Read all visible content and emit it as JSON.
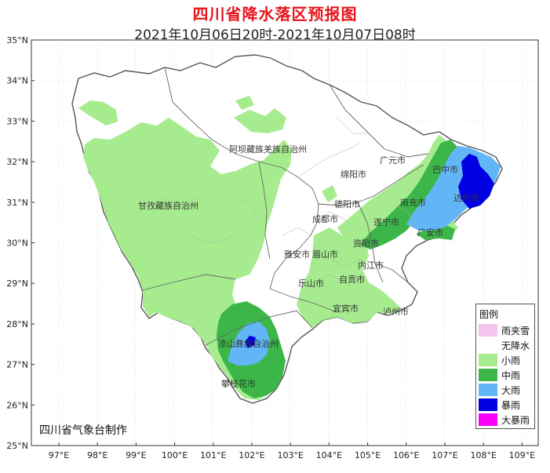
{
  "header": {
    "title": "四川省降水落区预报图",
    "subtitle": "2021年10月06日20时-2021年10月07日08时"
  },
  "axes": {
    "lat_labels": [
      "35°N",
      "34°N",
      "33°N",
      "32°N",
      "31°N",
      "30°N",
      "29°N",
      "28°N",
      "27°N",
      "26°N",
      "25°N"
    ],
    "lon_labels": [
      "97°E",
      "98°E",
      "99°E",
      "100°E",
      "101°E",
      "102°E",
      "103°E",
      "104°E",
      "105°E",
      "106°E",
      "107°E",
      "108°E",
      "109°E"
    ]
  },
  "regions": {
    "aba": "阿坝藏族羌族自治州",
    "ganzi": "甘孜藏族自治州",
    "liangshan": "凉山彝族自治州",
    "panzhihua": "攀枝花市",
    "guangyuan": "广元市",
    "mianyang": "绵阳市",
    "bazhong": "巴中市",
    "dazhou": "达州市",
    "deyang": "德阳市",
    "nanchong": "南充市",
    "chengdu": "成都市",
    "suining": "遂宁市",
    "guang_an": "广安市",
    "ziyang": "资阳市",
    "ya_an": "雅安市",
    "meishan": "眉山市",
    "neijiang": "内江市",
    "leshan": "乐山市",
    "zigong": "自贡市",
    "yibin": "宜宾市",
    "luzhou": "泸州市"
  },
  "legend": {
    "title": "图例",
    "items": [
      {
        "label": "雨夹雪",
        "color": "#f6c3ec"
      },
      {
        "label": "无降水",
        "color": "#ffffff"
      },
      {
        "label": "小雨",
        "color": "#a6ec8f"
      },
      {
        "label": "中雨",
        "color": "#3cb649"
      },
      {
        "label": "大雨",
        "color": "#62b6f8"
      },
      {
        "label": "暴雨",
        "color": "#0000e0"
      },
      {
        "label": "大暴雨",
        "color": "#f800f8"
      }
    ]
  },
  "footer": {
    "credit": "四川省气象台制作"
  }
}
